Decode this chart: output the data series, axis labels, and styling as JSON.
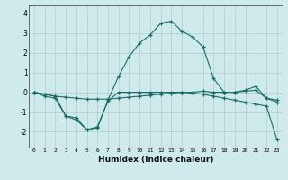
{
  "xlabel": "Humidex (Indice chaleur)",
  "background_color": "#ceeaea",
  "grid_color": "#b0cccc",
  "line_color": "#1a6b6b",
  "x": [
    0,
    1,
    2,
    3,
    4,
    5,
    6,
    7,
    8,
    9,
    10,
    11,
    12,
    13,
    14,
    15,
    16,
    17,
    18,
    19,
    20,
    21,
    22,
    23
  ],
  "line1": [
    0.0,
    -0.2,
    -0.3,
    -1.2,
    -1.3,
    -1.9,
    -1.8,
    -0.4,
    0.8,
    1.8,
    2.5,
    2.9,
    3.5,
    3.6,
    3.1,
    2.8,
    2.3,
    0.7,
    0.0,
    0.0,
    0.1,
    0.3,
    -0.3,
    -0.4
  ],
  "line2": [
    0.0,
    -0.1,
    -0.2,
    -1.2,
    -1.4,
    -1.9,
    -1.75,
    -0.45,
    0.0,
    0.0,
    0.0,
    0.0,
    0.0,
    0.0,
    0.0,
    -0.05,
    -0.1,
    -0.2,
    -0.3,
    -0.4,
    -0.5,
    -0.6,
    -0.7,
    -2.4
  ],
  "line3": [
    0.0,
    -0.1,
    -0.2,
    -0.25,
    -0.3,
    -0.35,
    -0.35,
    -0.35,
    -0.3,
    -0.25,
    -0.2,
    -0.15,
    -0.1,
    -0.05,
    0.0,
    0.0,
    0.05,
    0.0,
    0.0,
    0.0,
    0.05,
    0.1,
    -0.3,
    -0.5
  ],
  "ylim": [
    -2.8,
    4.4
  ],
  "yticks": [
    -2,
    -1,
    0,
    1,
    2,
    3,
    4
  ]
}
